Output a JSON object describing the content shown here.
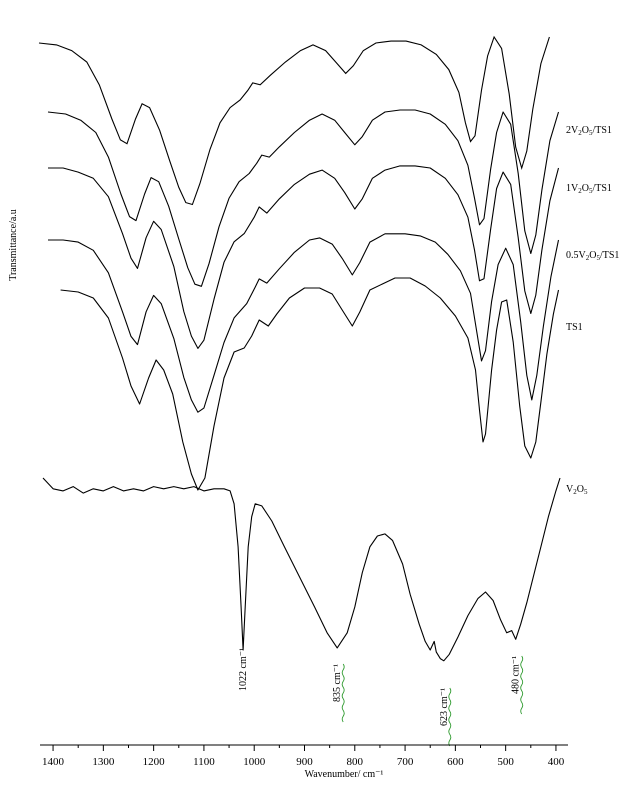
{
  "chart_data": {
    "type": "line",
    "xlabel": "Wavenumber/ cm⁻¹",
    "ylabel": "Transmittance/a.u",
    "x_ticks": [
      1400,
      1300,
      1200,
      1100,
      1000,
      900,
      800,
      700,
      600,
      500,
      400
    ],
    "xlim": [
      1420,
      380
    ],
    "series": [
      {
        "name": "TS1",
        "label_parts": [
          [
            "TS1",
            ""
          ]
        ],
        "points": [
          [
            1385,
            0.0
          ],
          [
            1350,
            0.05
          ],
          [
            1320,
            0.2
          ],
          [
            1290,
            0.7
          ],
          [
            1262,
            1.7
          ],
          [
            1245,
            2.4
          ],
          [
            1228,
            2.85
          ],
          [
            1210,
            2.2
          ],
          [
            1195,
            1.75
          ],
          [
            1180,
            2.0
          ],
          [
            1162,
            2.6
          ],
          [
            1142,
            3.8
          ],
          [
            1125,
            4.6
          ],
          [
            1112,
            5.0
          ],
          [
            1098,
            4.7
          ],
          [
            1080,
            3.4
          ],
          [
            1060,
            2.2
          ],
          [
            1040,
            1.55
          ],
          [
            1020,
            1.45
          ],
          [
            1005,
            1.15
          ],
          [
            990,
            0.75
          ],
          [
            972,
            0.9
          ],
          [
            955,
            0.6
          ],
          [
            930,
            0.2
          ],
          [
            900,
            -0.05
          ],
          [
            870,
            -0.05
          ],
          [
            845,
            0.1
          ],
          [
            825,
            0.5
          ],
          [
            805,
            0.9
          ],
          [
            790,
            0.55
          ],
          [
            770,
            0.0
          ],
          [
            745,
            -0.15
          ],
          [
            720,
            -0.3
          ],
          [
            690,
            -0.3
          ],
          [
            660,
            -0.1
          ],
          [
            630,
            0.2
          ],
          [
            600,
            0.65
          ],
          [
            575,
            1.2
          ],
          [
            560,
            2.0
          ],
          [
            552,
            3.0
          ],
          [
            545,
            3.8
          ],
          [
            540,
            3.6
          ],
          [
            528,
            2.0
          ],
          [
            518,
            1.0
          ],
          [
            508,
            0.3
          ],
          [
            498,
            0.25
          ],
          [
            485,
            1.3
          ],
          [
            472,
            2.9
          ],
          [
            462,
            3.9
          ],
          [
            450,
            4.2
          ],
          [
            440,
            3.8
          ],
          [
            430,
            2.8
          ],
          [
            418,
            1.6
          ],
          [
            405,
            0.6
          ],
          [
            395,
            0.0
          ]
        ]
      },
      {
        "name": "0.5V₂O₅/TS1",
        "label_parts": [
          [
            "0.5V",
            ""
          ],
          [
            "2",
            "sub"
          ],
          [
            "O",
            ""
          ],
          [
            "5",
            "sub"
          ],
          [
            "/TS1",
            ""
          ]
        ],
        "points": [
          [
            1410,
            0.0
          ],
          [
            1380,
            0.0
          ],
          [
            1350,
            0.05
          ],
          [
            1320,
            0.25
          ],
          [
            1290,
            0.8
          ],
          [
            1262,
            1.75
          ],
          [
            1245,
            2.35
          ],
          [
            1232,
            2.55
          ],
          [
            1215,
            1.75
          ],
          [
            1200,
            1.35
          ],
          [
            1185,
            1.55
          ],
          [
            1160,
            2.4
          ],
          [
            1140,
            3.35
          ],
          [
            1125,
            3.9
          ],
          [
            1112,
            4.2
          ],
          [
            1100,
            4.1
          ],
          [
            1080,
            3.3
          ],
          [
            1060,
            2.5
          ],
          [
            1040,
            1.9
          ],
          [
            1015,
            1.55
          ],
          [
            998,
            1.15
          ],
          [
            990,
            0.95
          ],
          [
            975,
            1.05
          ],
          [
            950,
            0.7
          ],
          [
            920,
            0.3
          ],
          [
            890,
            0.0
          ],
          [
            870,
            -0.05
          ],
          [
            845,
            0.1
          ],
          [
            825,
            0.45
          ],
          [
            805,
            0.85
          ],
          [
            790,
            0.55
          ],
          [
            770,
            0.05
          ],
          [
            740,
            -0.15
          ],
          [
            700,
            -0.15
          ],
          [
            670,
            -0.1
          ],
          [
            640,
            0.05
          ],
          [
            615,
            0.35
          ],
          [
            590,
            0.75
          ],
          [
            570,
            1.3
          ],
          [
            558,
            2.2
          ],
          [
            548,
            2.95
          ],
          [
            540,
            2.7
          ],
          [
            528,
            1.5
          ],
          [
            515,
            0.6
          ],
          [
            500,
            0.2
          ],
          [
            485,
            0.6
          ],
          [
            470,
            2.0
          ],
          [
            458,
            3.3
          ],
          [
            448,
            3.9
          ],
          [
            438,
            3.3
          ],
          [
            425,
            2.1
          ],
          [
            410,
            0.9
          ],
          [
            395,
            0.0
          ]
        ]
      },
      {
        "name": "1V₂O₅/TS1",
        "label_parts": [
          [
            "1V",
            ""
          ],
          [
            "2",
            "sub"
          ],
          [
            "O",
            ""
          ],
          [
            "5",
            "sub"
          ],
          [
            "/TS1",
            ""
          ]
        ],
        "points": [
          [
            1410,
            0.0
          ],
          [
            1380,
            0.0
          ],
          [
            1350,
            0.1
          ],
          [
            1320,
            0.25
          ],
          [
            1290,
            0.7
          ],
          [
            1262,
            1.6
          ],
          [
            1245,
            2.2
          ],
          [
            1232,
            2.45
          ],
          [
            1215,
            1.7
          ],
          [
            1200,
            1.3
          ],
          [
            1185,
            1.5
          ],
          [
            1160,
            2.4
          ],
          [
            1140,
            3.5
          ],
          [
            1125,
            4.1
          ],
          [
            1112,
            4.4
          ],
          [
            1100,
            4.2
          ],
          [
            1080,
            3.2
          ],
          [
            1060,
            2.3
          ],
          [
            1040,
            1.8
          ],
          [
            1020,
            1.6
          ],
          [
            1000,
            1.2
          ],
          [
            990,
            0.95
          ],
          [
            975,
            1.1
          ],
          [
            950,
            0.75
          ],
          [
            920,
            0.4
          ],
          [
            890,
            0.15
          ],
          [
            865,
            0.05
          ],
          [
            840,
            0.25
          ],
          [
            820,
            0.6
          ],
          [
            800,
            1.0
          ],
          [
            785,
            0.75
          ],
          [
            765,
            0.25
          ],
          [
            740,
            0.05
          ],
          [
            710,
            -0.05
          ],
          [
            680,
            -0.05
          ],
          [
            650,
            0.0
          ],
          [
            620,
            0.25
          ],
          [
            595,
            0.65
          ],
          [
            575,
            1.2
          ],
          [
            562,
            2.0
          ],
          [
            552,
            2.75
          ],
          [
            543,
            2.7
          ],
          [
            530,
            1.5
          ],
          [
            518,
            0.5
          ],
          [
            505,
            0.1
          ],
          [
            490,
            0.4
          ],
          [
            475,
            1.7
          ],
          [
            462,
            3.0
          ],
          [
            450,
            3.55
          ],
          [
            440,
            3.1
          ],
          [
            428,
            2.0
          ],
          [
            412,
            0.8
          ],
          [
            395,
            0.0
          ]
        ]
      },
      {
        "name": "2V₂O₅/TS1",
        "label_parts": [
          [
            "2V",
            ""
          ],
          [
            "2",
            "sub"
          ],
          [
            "O",
            ""
          ],
          [
            "5",
            "sub"
          ],
          [
            "/TS1",
            ""
          ]
        ],
        "points": [
          [
            1410,
            0.0
          ],
          [
            1375,
            0.05
          ],
          [
            1345,
            0.2
          ],
          [
            1315,
            0.5
          ],
          [
            1290,
            1.1
          ],
          [
            1265,
            2.0
          ],
          [
            1248,
            2.55
          ],
          [
            1235,
            2.65
          ],
          [
            1218,
            2.0
          ],
          [
            1205,
            1.6
          ],
          [
            1190,
            1.7
          ],
          [
            1170,
            2.3
          ],
          [
            1150,
            3.1
          ],
          [
            1132,
            3.8
          ],
          [
            1118,
            4.2
          ],
          [
            1105,
            4.25
          ],
          [
            1090,
            3.7
          ],
          [
            1070,
            2.8
          ],
          [
            1050,
            2.1
          ],
          [
            1030,
            1.7
          ],
          [
            1010,
            1.5
          ],
          [
            995,
            1.25
          ],
          [
            985,
            1.05
          ],
          [
            970,
            1.1
          ],
          [
            950,
            0.85
          ],
          [
            920,
            0.5
          ],
          [
            890,
            0.2
          ],
          [
            865,
            0.05
          ],
          [
            840,
            0.2
          ],
          [
            820,
            0.5
          ],
          [
            800,
            0.8
          ],
          [
            785,
            0.6
          ],
          [
            765,
            0.2
          ],
          [
            740,
            0.0
          ],
          [
            710,
            -0.05
          ],
          [
            680,
            -0.05
          ],
          [
            650,
            0.05
          ],
          [
            620,
            0.3
          ],
          [
            595,
            0.7
          ],
          [
            575,
            1.3
          ],
          [
            562,
            2.1
          ],
          [
            552,
            2.75
          ],
          [
            543,
            2.6
          ],
          [
            530,
            1.4
          ],
          [
            518,
            0.5
          ],
          [
            505,
            0.0
          ],
          [
            490,
            0.3
          ],
          [
            475,
            1.5
          ],
          [
            462,
            2.9
          ],
          [
            450,
            3.45
          ],
          [
            440,
            3.0
          ],
          [
            428,
            1.9
          ],
          [
            412,
            0.7
          ],
          [
            395,
            0.0
          ]
        ]
      },
      {
        "name": "V₂O₅",
        "label_parts": [
          [
            "V",
            ""
          ],
          [
            "2",
            "sub"
          ],
          [
            "O",
            ""
          ],
          [
            "5",
            "sub"
          ]
        ],
        "points": [
          [
            1420,
            0.0
          ],
          [
            1400,
            0.25
          ],
          [
            1380,
            0.3
          ],
          [
            1360,
            0.2
          ],
          [
            1340,
            0.35
          ],
          [
            1320,
            0.25
          ],
          [
            1300,
            0.3
          ],
          [
            1280,
            0.2
          ],
          [
            1260,
            0.3
          ],
          [
            1240,
            0.25
          ],
          [
            1220,
            0.3
          ],
          [
            1200,
            0.2
          ],
          [
            1180,
            0.25
          ],
          [
            1160,
            0.2
          ],
          [
            1140,
            0.25
          ],
          [
            1120,
            0.2
          ],
          [
            1100,
            0.3
          ],
          [
            1080,
            0.25
          ],
          [
            1060,
            0.25
          ],
          [
            1048,
            0.3
          ],
          [
            1040,
            0.6
          ],
          [
            1032,
            1.6
          ],
          [
            1026,
            3.0
          ],
          [
            1022,
            4.0
          ],
          [
            1018,
            3.0
          ],
          [
            1012,
            1.6
          ],
          [
            1005,
            0.9
          ],
          [
            998,
            0.6
          ],
          [
            985,
            0.65
          ],
          [
            965,
            1.0
          ],
          [
            940,
            1.6
          ],
          [
            910,
            2.3
          ],
          [
            880,
            3.0
          ],
          [
            855,
            3.6
          ],
          [
            835,
            3.95
          ],
          [
            815,
            3.6
          ],
          [
            800,
            3.0
          ],
          [
            785,
            2.2
          ],
          [
            770,
            1.6
          ],
          [
            755,
            1.35
          ],
          [
            740,
            1.3
          ],
          [
            725,
            1.45
          ],
          [
            705,
            2.0
          ],
          [
            690,
            2.7
          ],
          [
            672,
            3.4
          ],
          [
            660,
            3.8
          ],
          [
            650,
            4.0
          ],
          [
            642,
            3.8
          ],
          [
            638,
            4.05
          ],
          [
            630,
            4.2
          ],
          [
            623,
            4.25
          ],
          [
            612,
            4.1
          ],
          [
            595,
            3.7
          ],
          [
            575,
            3.2
          ],
          [
            555,
            2.8
          ],
          [
            540,
            2.65
          ],
          [
            525,
            2.85
          ],
          [
            510,
            3.3
          ],
          [
            498,
            3.6
          ],
          [
            488,
            3.55
          ],
          [
            480,
            3.75
          ],
          [
            470,
            3.4
          ],
          [
            458,
            2.9
          ],
          [
            445,
            2.3
          ],
          [
            430,
            1.6
          ],
          [
            415,
            0.9
          ],
          [
            400,
            0.3
          ],
          [
            392,
            0.0
          ]
        ]
      }
    ],
    "annotations": [
      {
        "x": 1022,
        "label": "1022 cm⁻¹"
      },
      {
        "x": 835,
        "label": "835 cm⁻¹"
      },
      {
        "x": 623,
        "label": "623 cm⁻¹"
      },
      {
        "x": 480,
        "label": "480 cm⁻¹"
      }
    ],
    "colors": {
      "line": "#000000",
      "annotation_underline": "#2e9a2e"
    }
  }
}
